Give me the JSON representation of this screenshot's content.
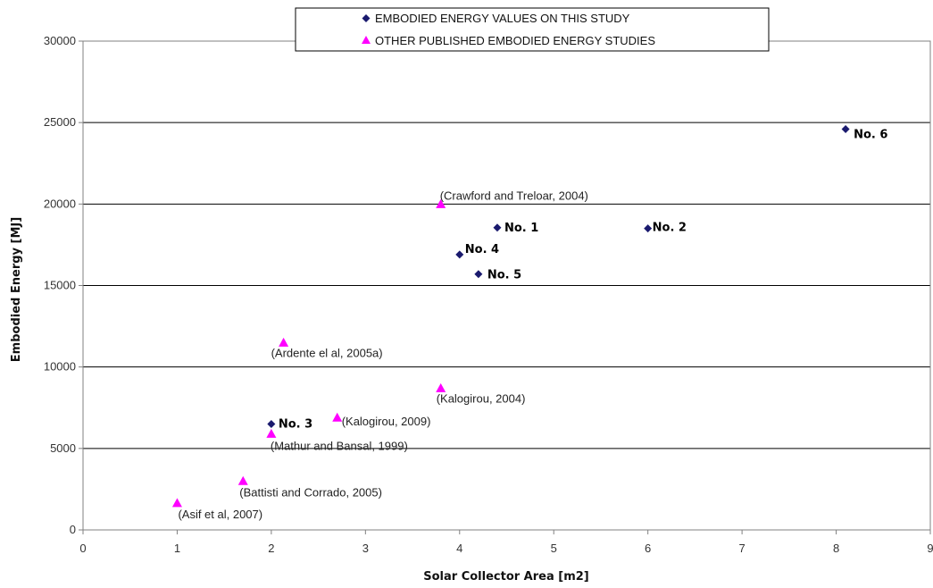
{
  "chart_data": {
    "type": "scatter",
    "xlabel": "Solar Collector Area [m2]",
    "ylabel": "Embodied Energy [MJ]",
    "xlim": [
      0,
      9
    ],
    "ylim": [
      0,
      30000
    ],
    "x_ticks": [
      "0",
      "1",
      "2",
      "3",
      "4",
      "5",
      "6",
      "7",
      "8",
      "9"
    ],
    "y_ticks": [
      "0",
      "5000",
      "10000",
      "15000",
      "20000",
      "25000",
      "30000"
    ],
    "grid": "horizontal",
    "legend_position": "top-center",
    "series": [
      {
        "name": "EMBODIED ENERGY VALUES ON THIS STUDY",
        "marker": "diamond",
        "color": "#1a1a6e",
        "points": [
          {
            "x": 4.4,
            "y": 18550,
            "label": "No. 1"
          },
          {
            "x": 6.0,
            "y": 18500,
            "label": "No. 2"
          },
          {
            "x": 2.0,
            "y": 6500,
            "label": "No. 3"
          },
          {
            "x": 4.0,
            "y": 16900,
            "label": "No. 4"
          },
          {
            "x": 4.2,
            "y": 15700,
            "label": "No. 5"
          },
          {
            "x": 8.1,
            "y": 24600,
            "label": "No. 6"
          }
        ]
      },
      {
        "name": "OTHER PUBLISHED EMBODIED ENERGY STUDIES",
        "marker": "triangle",
        "color": "#ff00ff",
        "points": [
          {
            "x": 3.8,
            "y": 20000,
            "label": "(Crawford and Treloar, 2004)"
          },
          {
            "x": 2.13,
            "y": 11500,
            "label": "(Ardente el al, 2005a)"
          },
          {
            "x": 3.8,
            "y": 8700,
            "label": "(Kalogirou, 2004)"
          },
          {
            "x": 2.7,
            "y": 6900,
            "label": "(Kalogirou, 2009)"
          },
          {
            "x": 2.0,
            "y": 5900,
            "label": "(Mathur and Bansal, 1999)"
          },
          {
            "x": 1.7,
            "y": 3000,
            "label": "(Battisti and Corrado, 2005)"
          },
          {
            "x": 1.0,
            "y": 1650,
            "label": "(Asif et al, 2007)"
          }
        ]
      }
    ]
  }
}
